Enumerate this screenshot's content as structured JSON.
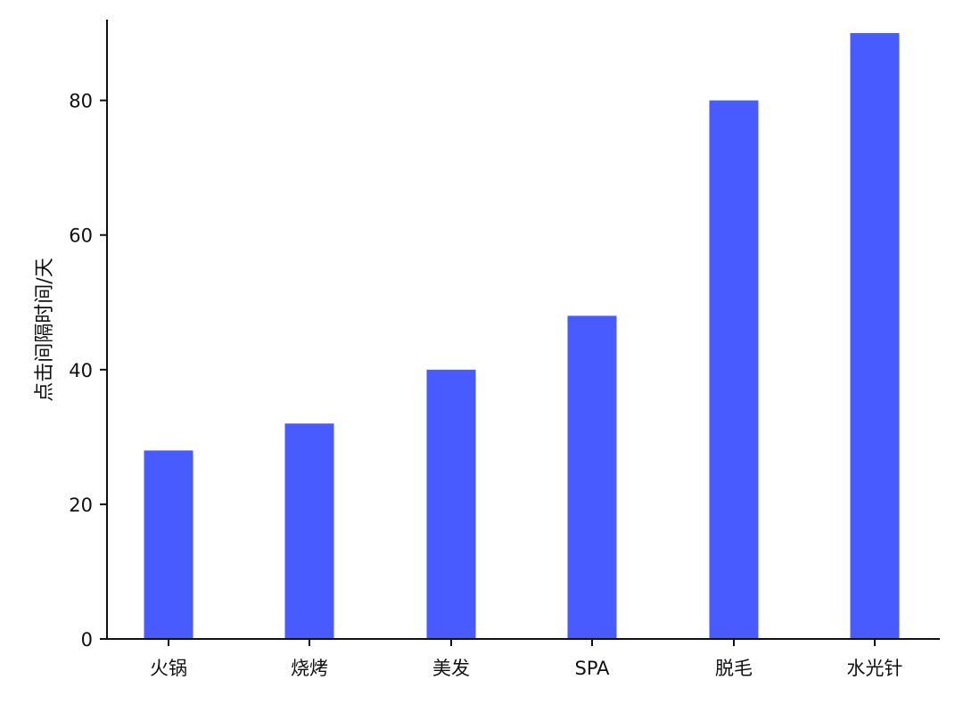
{
  "chart_data": {
    "type": "bar",
    "title": "",
    "xlabel": "",
    "ylabel": "点击间隔时间/天",
    "categories": [
      "火锅",
      "烧烤",
      "美发",
      "SPA",
      "脱毛",
      "水光针"
    ],
    "values": [
      28,
      32,
      40,
      48,
      80,
      90
    ],
    "ylim": [
      0,
      92
    ],
    "yticks": [
      0,
      20,
      40,
      60,
      80
    ],
    "grid": false,
    "legend": "none",
    "bar_color": "#475BFF",
    "axis_color": "#111111"
  }
}
